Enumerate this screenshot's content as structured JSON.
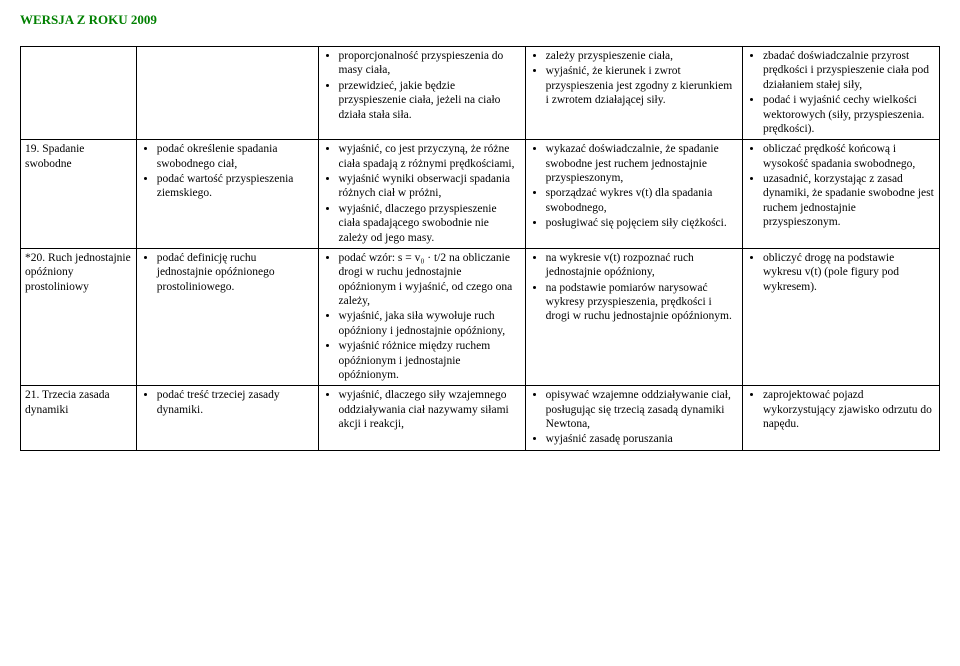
{
  "header": "WERSJA Z ROKU 2009",
  "rows": [
    {
      "label": "",
      "col1": [],
      "col2": [
        "proporcjonalność przyspieszenia do masy ciała,",
        "przewidzieć, jakie będzie przyspieszenie ciała, jeżeli na ciało działa stała siła."
      ],
      "col3": [
        "zależy przyspieszenie ciała,",
        "wyjaśnić, że kierunek i zwrot przyspieszenia jest zgodny z kierunkiem i zwrotem działającej siły."
      ],
      "col4": [
        "zbadać doświadczalnie przyrost prędkości i przyspieszenie ciała pod działaniem stałej siły,",
        "podać i wyjaśnić cechy wielkości wektorowych (siły, przyspieszenia. prędkości)."
      ]
    },
    {
      "label": "19. Spadanie swobodne",
      "col1": [
        "podać określenie spadania swobodnego ciał,",
        "podać wartość przyspieszenia ziemskiego."
      ],
      "col2": [
        "wyjaśnić, co jest przyczyną, że różne ciała spadają z różnymi prędkościami,",
        "wyjaśnić wyniki obserwacji spadania różnych ciał w próżni,",
        "wyjaśnić, dlaczego przyspieszenie ciała spadającego swobodnie nie zależy od jego masy."
      ],
      "col3": [
        "wykazać doświadczalnie, że spadanie swobodne jest ruchem jednostajnie przyspieszonym,",
        "sporządzać wykres v(t) dla spadania swobodnego,",
        "posługiwać się pojęciem siły ciężkości."
      ],
      "col4": [
        "obliczać prędkość końcową i wysokość spadania swobodnego,",
        "uzasadnić, korzystając z zasad dynamiki, że spadanie swobodne jest ruchem jednostajnie przyspieszonym."
      ]
    },
    {
      "label": "*20. Ruch jednostajnie opóźniony prostoliniowy",
      "col1": [
        "podać definicję ruchu jednostajnie opóźnionego prostoliniowego."
      ],
      "col2": [
        "podać wzór: s = v₀ · t/2 na obliczanie drogi w ruchu jednostajnie opóźnionym i wyjaśnić, od czego ona zależy,",
        "wyjaśnić, jaka siła wywołuje ruch opóźniony i jednostajnie opóźniony,",
        "wyjaśnić różnice między ruchem opóźnionym i jednostajnie opóźnionym."
      ],
      "col3": [
        "na wykresie v(t) rozpoznać ruch jednostajnie opóźniony,",
        "na podstawie pomiarów narysować wykresy przyspieszenia, prędkości i drogi w ruchu jednostajnie opóźnionym."
      ],
      "col4": [
        "obliczyć drogę na podstawie wykresu v(t) (pole figury pod wykresem)."
      ]
    },
    {
      "label": "21. Trzecia zasada dynamiki",
      "col1": [
        "podać treść trzeciej zasady dynamiki."
      ],
      "col2": [
        "wyjaśnić, dlaczego siły wzajemnego oddziaływania ciał nazywamy siłami akcji i reakcji,"
      ],
      "col3": [
        "opisywać wzajemne oddziaływanie ciał, posługując się trzecią zasadą dynamiki Newtona,",
        "wyjaśnić zasadę poruszania"
      ],
      "col4": [
        "zaprojektować pojazd wykorzystujący zjawisko odrzutu do napędu."
      ]
    }
  ]
}
